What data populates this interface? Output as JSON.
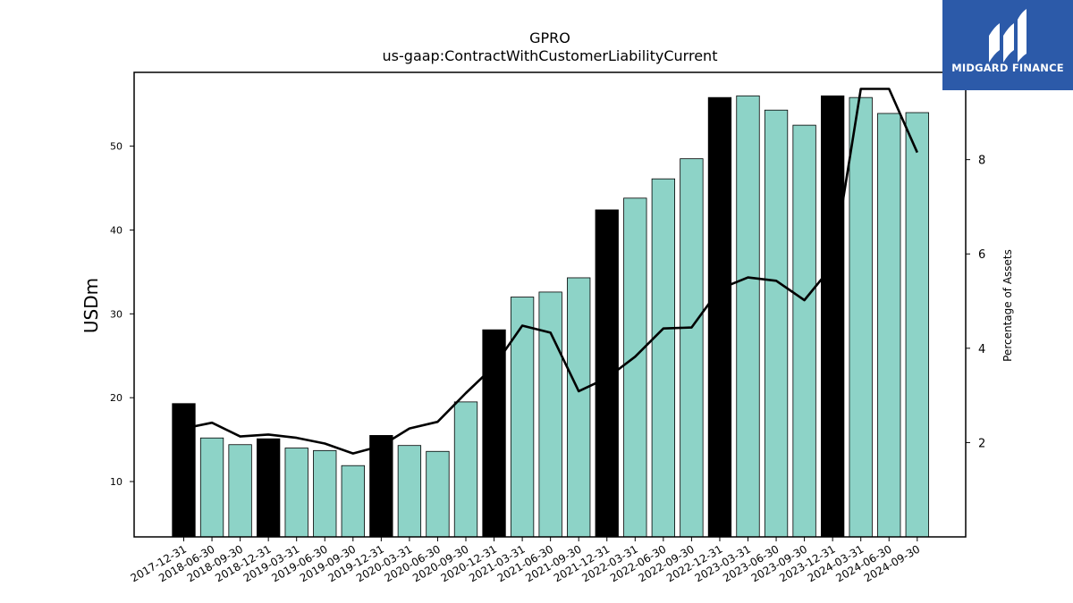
{
  "logo": {
    "brand_text": "MIDGARD FINANCE",
    "background": "#2c5aa9"
  },
  "chart_data": {
    "type": "bar",
    "title": "GPRO",
    "subtitle": "us-gaap:ContractWithCustomerLiabilityCurrent",
    "ylabel": "USDm",
    "y2label": "Percentage of Assets",
    "ylim": [
      3.4,
      58.8
    ],
    "y2lim": [
      0.0,
      9.85
    ],
    "yticks": [
      10,
      20,
      30,
      40,
      50
    ],
    "y2ticks": [
      2,
      4,
      6,
      8
    ],
    "grid": false,
    "categories": [
      "2017-12-31",
      "2018-06-30",
      "2018-09-30",
      "2018-12-31",
      "2019-03-31",
      "2019-06-30",
      "2019-09-30",
      "2019-12-31",
      "2020-03-31",
      "2020-06-30",
      "2020-09-30",
      "2020-12-31",
      "2021-03-31",
      "2021-06-30",
      "2021-09-30",
      "2021-12-31",
      "2022-03-31",
      "2022-06-30",
      "2022-09-30",
      "2022-12-31",
      "2023-03-31",
      "2023-06-30",
      "2023-09-30",
      "2023-12-31",
      "2024-03-31",
      "2024-06-30",
      "2024-09-30"
    ],
    "series": [
      {
        "kind": "bar",
        "axis": "left",
        "values": [
          19.3,
          15.2,
          14.4,
          15.1,
          14.0,
          13.7,
          11.9,
          15.5,
          14.3,
          13.6,
          19.5,
          28.1,
          32.0,
          32.6,
          34.3,
          42.4,
          43.8,
          46.1,
          48.5,
          55.8,
          56.0,
          54.3,
          52.5,
          56.0,
          55.8,
          53.9,
          54.0
        ],
        "annual_flags": [
          true,
          false,
          false,
          true,
          false,
          false,
          false,
          true,
          false,
          false,
          false,
          true,
          false,
          false,
          false,
          true,
          false,
          false,
          false,
          true,
          false,
          false,
          false,
          true,
          false,
          false,
          false
        ],
        "colors": {
          "annual": "#000000",
          "quarterly": "#8dd3c7",
          "edge": "#000000"
        }
      },
      {
        "kind": "line",
        "axis": "right",
        "color": "#000000",
        "values": [
          2.3,
          2.42,
          2.13,
          2.17,
          2.1,
          1.98,
          1.77,
          1.93,
          2.3,
          2.44,
          3.05,
          3.62,
          4.48,
          4.33,
          3.09,
          3.37,
          3.82,
          4.42,
          4.44,
          5.26,
          5.5,
          5.43,
          5.02,
          5.75,
          9.5,
          9.5,
          8.15
        ]
      }
    ]
  }
}
